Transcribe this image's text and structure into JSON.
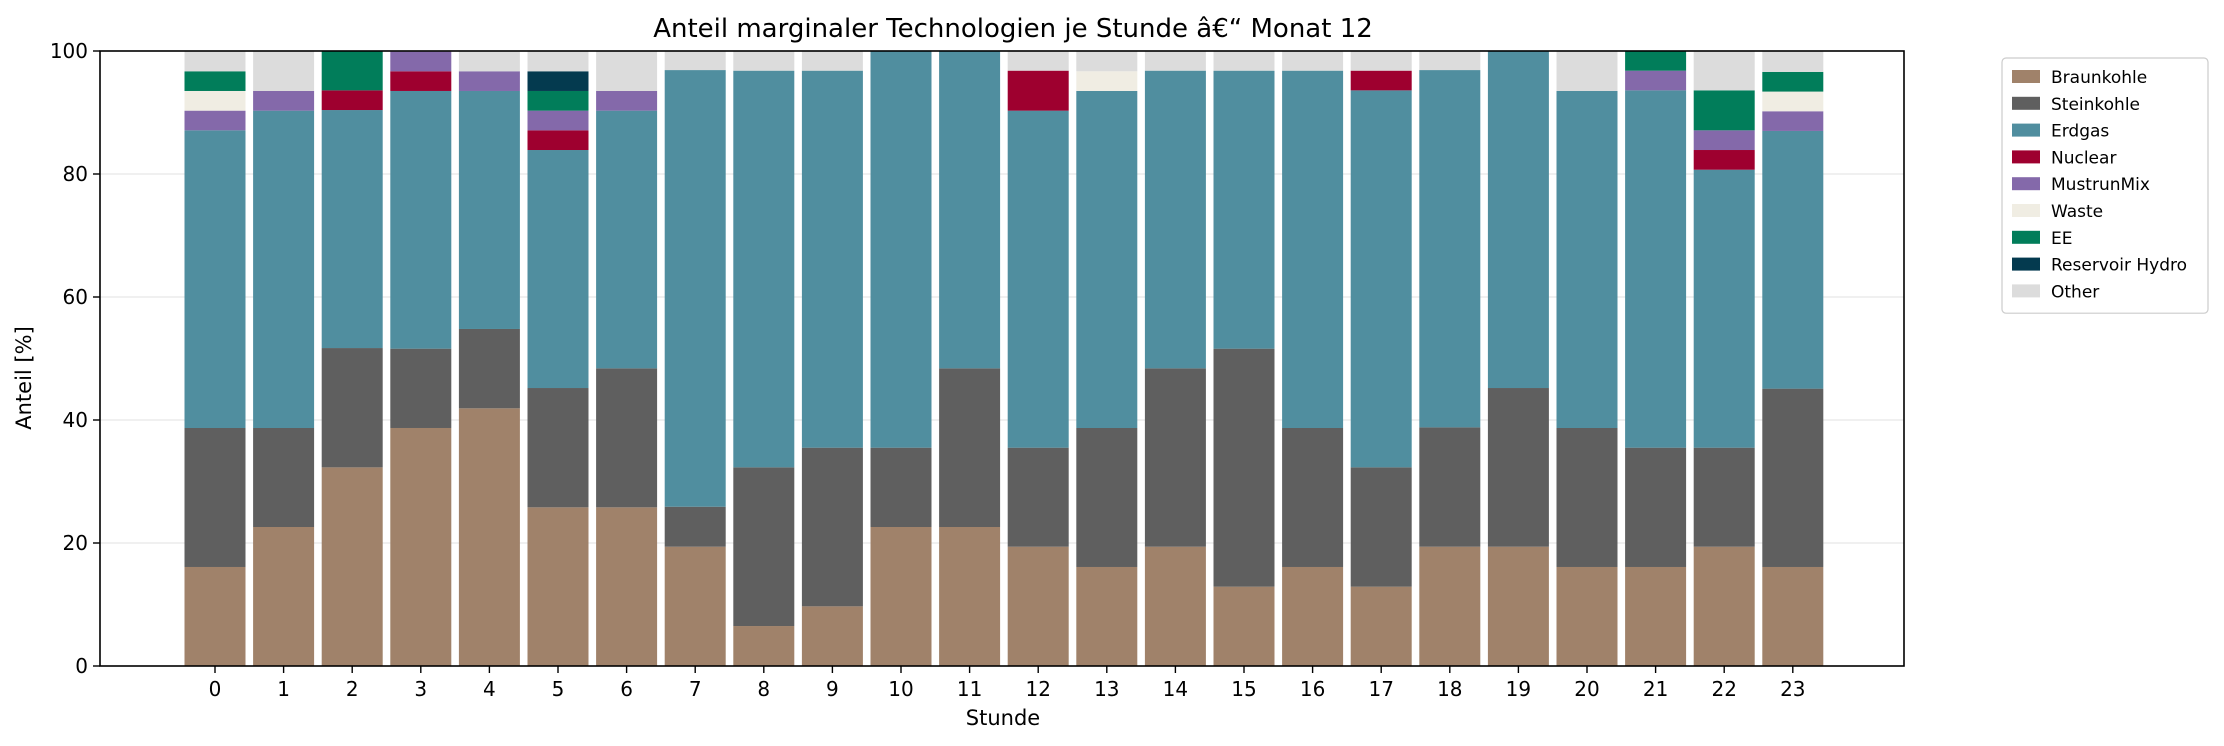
{
  "chart_data": {
    "type": "bar",
    "stacked": true,
    "title": "Anteil marginaler Technologien je Stunde â€“ Monat 12",
    "xlabel": "Stunde",
    "ylabel": "Anteil [%]",
    "ylim": [
      0,
      100
    ],
    "yticks": [
      0,
      20,
      40,
      60,
      80,
      100
    ],
    "grid": "y",
    "legend_position": "outside-right",
    "categories": [
      "0",
      "1",
      "2",
      "3",
      "4",
      "5",
      "6",
      "7",
      "8",
      "9",
      "10",
      "11",
      "12",
      "13",
      "14",
      "15",
      "16",
      "17",
      "18",
      "19",
      "20",
      "21",
      "22",
      "23"
    ],
    "series": [
      {
        "name": "Braunkohle",
        "color": "#a0826a",
        "values": [
          16.1,
          22.6,
          32.3,
          38.7,
          41.9,
          25.8,
          25.8,
          19.4,
          6.5,
          9.7,
          22.6,
          22.6,
          19.4,
          16.1,
          19.4,
          12.9,
          16.1,
          12.9,
          19.4,
          19.4,
          16.1,
          16.1,
          19.4,
          16.1
        ]
      },
      {
        "name": "Steinkohle",
        "color": "#5f5f5f",
        "values": [
          22.6,
          16.1,
          19.4,
          12.9,
          12.9,
          19.4,
          22.6,
          6.5,
          25.8,
          25.8,
          12.9,
          25.8,
          16.1,
          22.6,
          29.0,
          38.7,
          22.6,
          19.4,
          19.4,
          25.8,
          22.6,
          19.4,
          16.1,
          29.0
        ]
      },
      {
        "name": "Erdgas",
        "color": "#508e9f",
        "values": [
          48.4,
          51.6,
          38.7,
          41.9,
          38.7,
          38.7,
          41.9,
          71.0,
          64.5,
          61.3,
          64.5,
          51.6,
          54.8,
          54.8,
          48.4,
          45.2,
          58.1,
          61.3,
          58.1,
          54.8,
          54.8,
          58.1,
          45.2,
          41.9
        ]
      },
      {
        "name": "Nuclear",
        "color": "#9e002f",
        "values": [
          0,
          0,
          3.2,
          3.2,
          0,
          3.2,
          0,
          0,
          0,
          0,
          0,
          0,
          6.5,
          0,
          0,
          0,
          0,
          3.2,
          0,
          0,
          0,
          0,
          3.2,
          0
        ]
      },
      {
        "name": "MustrunMix",
        "color": "#8469aa",
        "values": [
          3.2,
          3.2,
          0,
          3.2,
          3.2,
          3.2,
          3.2,
          0,
          0,
          0,
          0,
          0,
          0,
          0,
          0,
          0,
          0,
          0,
          0,
          0,
          0,
          3.2,
          3.2,
          3.2
        ]
      },
      {
        "name": "Waste",
        "color": "#f0ede3",
        "values": [
          3.2,
          0,
          0,
          0,
          0,
          0,
          0,
          0,
          0,
          0,
          0,
          0,
          0,
          3.2,
          0,
          0,
          0,
          0,
          0,
          0,
          0,
          0,
          0,
          3.2
        ]
      },
      {
        "name": "EE",
        "color": "#017d5a",
        "values": [
          3.2,
          0,
          6.5,
          0,
          0,
          3.2,
          0,
          0,
          0,
          0,
          0,
          0,
          0,
          0,
          0,
          0,
          0,
          0,
          0,
          0,
          0,
          3.2,
          6.5,
          3.2
        ]
      },
      {
        "name": "Reservoir Hydro",
        "color": "#043a4f",
        "values": [
          0,
          0,
          0,
          0,
          0,
          3.2,
          0,
          0,
          0,
          0,
          0,
          0,
          0,
          0,
          0,
          0,
          0,
          0,
          0,
          0,
          0,
          0,
          0,
          0
        ]
      },
      {
        "name": "Other",
        "color": "#dcdcdc",
        "values": [
          3.3,
          6.5,
          0,
          0,
          3.3,
          3.3,
          6.5,
          3.1,
          3.2,
          3.2,
          0,
          0,
          3.2,
          3.3,
          3.2,
          3.2,
          3.2,
          3.2,
          3.1,
          0,
          6.5,
          0,
          6.4,
          3.4
        ]
      }
    ]
  }
}
